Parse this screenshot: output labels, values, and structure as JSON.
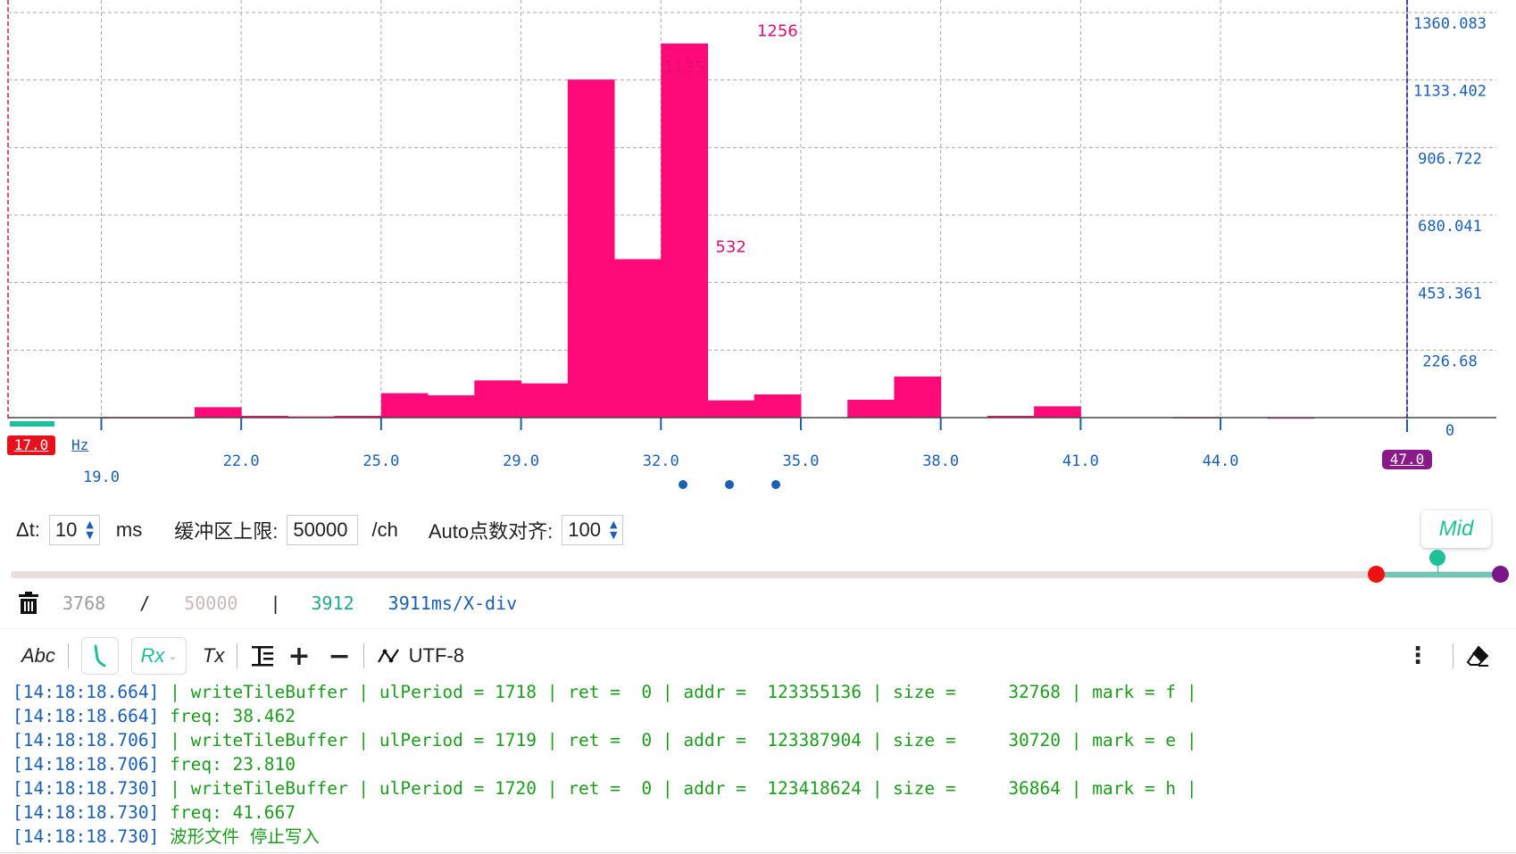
{
  "chart_data": {
    "type": "bar",
    "x": [
      20,
      21,
      22,
      23,
      24,
      25,
      26,
      27,
      28,
      29,
      30,
      31,
      32,
      33,
      34,
      35,
      36,
      37,
      38,
      39,
      40,
      41,
      42,
      43,
      44,
      45,
      46
    ],
    "values": [
      2,
      2,
      35,
      6,
      4,
      6,
      82,
      75,
      125,
      115,
      1135,
      532,
      1256,
      58,
      78,
      0,
      60,
      138,
      0,
      6,
      38,
      0,
      0,
      2,
      0,
      1,
      0
    ],
    "data_labels": {
      "31.5": "1135",
      "32.5": "532",
      "33.5": "1256"
    },
    "xlim": [
      17.0,
      47.0
    ],
    "x_ticks": [
      "19.0",
      "22.0",
      "25.0",
      "29.0",
      "32.0",
      "35.0",
      "38.0",
      "41.0",
      "44.0"
    ],
    "y_ticks": [
      "1360.083",
      "1133.402",
      "906.722",
      "680.041",
      "453.361",
      "226.68",
      "0"
    ],
    "ylim": [
      0,
      1360.083
    ],
    "x_unit": "Hz",
    "cursor_left": "17.0",
    "cursor_right": "47.0",
    "grid": true,
    "bar_color": "#ff0a78",
    "label_color": "#e0106c",
    "tick_color": "#1a5fb4"
  },
  "settings": {
    "dt_label": "Δt:",
    "dt_value": "10",
    "dt_unit": "ms",
    "buffer_label": "缓冲区上限:",
    "buffer_value": "50000",
    "buffer_unit": "/ch",
    "auto_label": "Auto点数对齐:",
    "auto_value": "100",
    "mid_label": "Mid"
  },
  "status": {
    "current": "3768",
    "slash": "/",
    "max": "50000",
    "divider": "|",
    "points": "3912",
    "xdiv": "3911ms/X-div"
  },
  "toolbar": {
    "abc": "Abc",
    "rx": "Rx",
    "tx": "Tx",
    "encoding": "UTF-8"
  },
  "log": [
    {
      "ts": "[14:18:18.664]",
      "msg": " | writeTileBuffer | ulPeriod = 1718 | ret =  0 | addr =  123355136 | size =     32768 | mark = f |"
    },
    {
      "ts": "[14:18:18.664]",
      "msg": " freq: 38.462"
    },
    {
      "ts": "[14:18:18.706]",
      "msg": " | writeTileBuffer | ulPeriod = 1719 | ret =  0 | addr =  123387904 | size =     30720 | mark = e |"
    },
    {
      "ts": "[14:18:18.706]",
      "msg": " freq: 23.810"
    },
    {
      "ts": "[14:18:18.730]",
      "msg": " | writeTileBuffer | ulPeriod = 1720 | ret =  0 | addr =  123418624 | size =     36864 | mark = h |"
    },
    {
      "ts": "[14:18:18.730]",
      "msg": " freq: 41.667"
    },
    {
      "ts": "[14:18:18.730]",
      "msg": " 波形文件 停止写入"
    }
  ]
}
